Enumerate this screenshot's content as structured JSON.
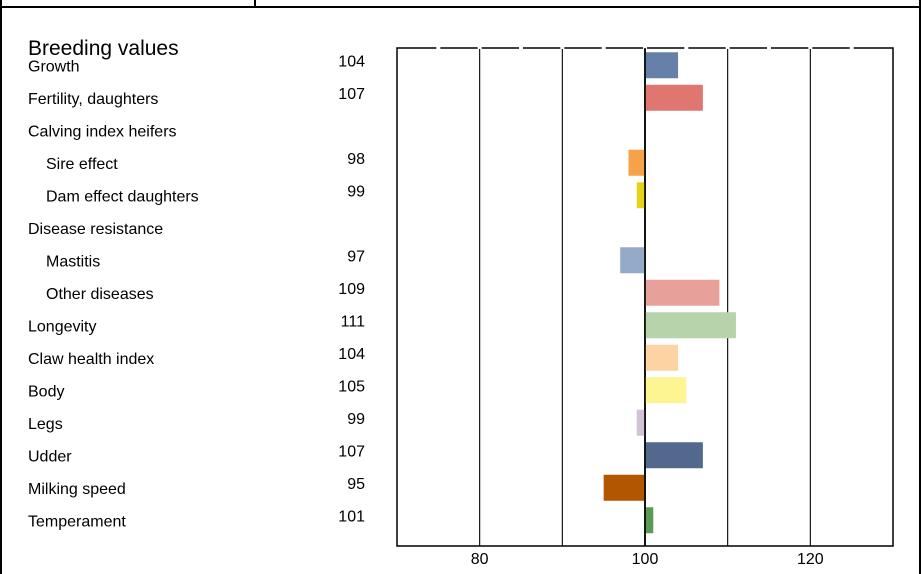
{
  "chart_data": {
    "type": "bar",
    "orientation": "horizontal",
    "title": "Breeding values",
    "baseline": 100,
    "xlim": [
      70,
      130
    ],
    "xticks": [
      80,
      100,
      120
    ],
    "grid": true,
    "rows": [
      {
        "label": "Growth",
        "value": 104,
        "value_label": "104",
        "color": "#6680aa",
        "indent": false
      },
      {
        "label": "Fertility, daughters",
        "value": 107,
        "value_label": "107",
        "color": "#e07670",
        "indent": false
      },
      {
        "label": "Calving index heifers",
        "value": null,
        "value_label": "",
        "color": "",
        "indent": false
      },
      {
        "label": "Sire effect",
        "value": 98,
        "value_label": "98",
        "color": "#f7a24a",
        "indent": true
      },
      {
        "label": "Dam effect daughters",
        "value": 99,
        "value_label": "99",
        "color": "#e6d21a",
        "indent": true
      },
      {
        "label": "Disease resistance",
        "value": null,
        "value_label": "",
        "color": "",
        "indent": false
      },
      {
        "label": "Mastitis",
        "value": 97,
        "value_label": "97",
        "color": "#95a9c9",
        "indent": true
      },
      {
        "label": "Other diseases",
        "value": 109,
        "value_label": "109",
        "color": "#e8a09a",
        "indent": true
      },
      {
        "label": "Longevity",
        "value": 111,
        "value_label": "111",
        "color": "#b6d3ac",
        "indent": false
      },
      {
        "label": "Claw health index",
        "value": 104,
        "value_label": "104",
        "color": "#fdd3a4",
        "indent": false
      },
      {
        "label": "Body",
        "value": 105,
        "value_label": "105",
        "color": "#fdf592",
        "indent": false
      },
      {
        "label": "Legs",
        "value": 99,
        "value_label": "99",
        "color": "#d2c2d8",
        "indent": false
      },
      {
        "label": "Udder",
        "value": 107,
        "value_label": "107",
        "color": "#52688c",
        "indent": false
      },
      {
        "label": "Milking speed",
        "value": 95,
        "value_label": "95",
        "color": "#b25600",
        "indent": false
      },
      {
        "label": "Temperament",
        "value": 101,
        "value_label": "101",
        "color": "#5a9a52",
        "indent": false
      }
    ]
  }
}
